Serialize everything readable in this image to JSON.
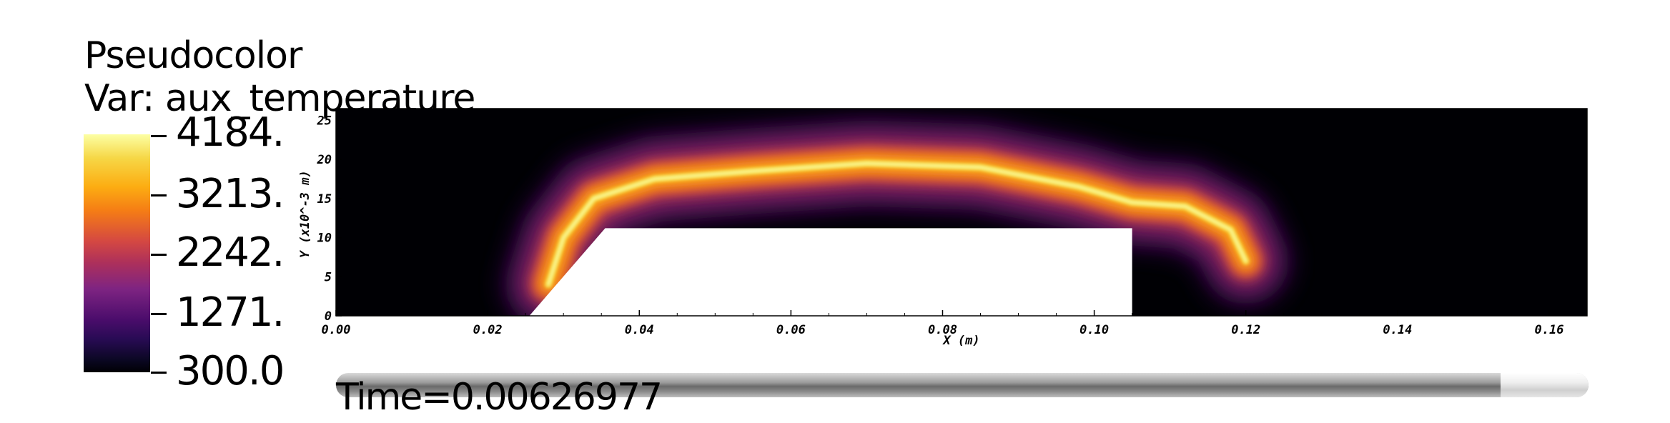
{
  "legend": {
    "line1": "Pseudocolor",
    "line2": "Var: aux_temperature",
    "tick_labels": [
      "4184.",
      "3213.",
      "2242.",
      "1271.",
      "300.0"
    ],
    "colormap": "inferno"
  },
  "time": {
    "label": "Time=0.00626977",
    "progress": 0.93
  },
  "chart_data": {
    "type": "heatmap",
    "title": "",
    "xlabel": "X (m)",
    "ylabel": "Y (x10^-3 m)",
    "xlim": [
      0.0,
      0.165
    ],
    "ylim": [
      0,
      26.5
    ],
    "x_ticks": [
      "0.00",
      "0.02",
      "0.04",
      "0.06",
      "0.08",
      "0.10",
      "0.12",
      "0.14",
      "0.16"
    ],
    "y_ticks": [
      "0",
      "5",
      "10",
      "15",
      "20",
      "25"
    ],
    "value_range": [
      300.0,
      4184.0
    ],
    "obstacle": {
      "x_start": 0.0255,
      "x_ramp_end": 0.0355,
      "x_end": 0.105,
      "y_top": 11.2
    },
    "flame_front": [
      {
        "x": 0.028,
        "y": 4.0
      },
      {
        "x": 0.03,
        "y": 10.0
      },
      {
        "x": 0.034,
        "y": 15.0
      },
      {
        "x": 0.042,
        "y": 17.5
      },
      {
        "x": 0.055,
        "y": 18.5
      },
      {
        "x": 0.07,
        "y": 19.5
      },
      {
        "x": 0.085,
        "y": 19.0
      },
      {
        "x": 0.098,
        "y": 16.5
      },
      {
        "x": 0.105,
        "y": 14.5
      },
      {
        "x": 0.112,
        "y": 14.0
      },
      {
        "x": 0.118,
        "y": 11.0
      },
      {
        "x": 0.12,
        "y": 7.0
      }
    ],
    "grid": false
  }
}
